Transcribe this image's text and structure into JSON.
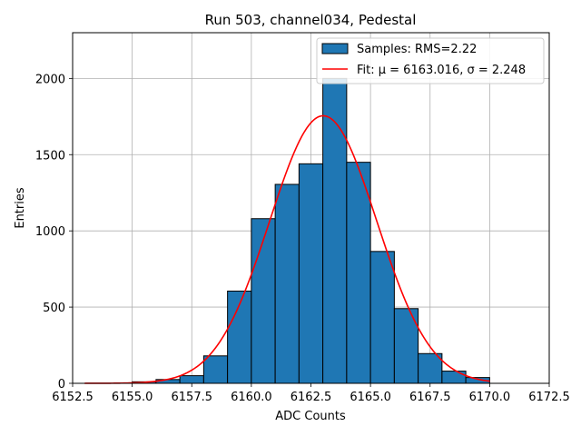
{
  "chart_data": {
    "type": "bar",
    "title": "Run 503, channel034, Pedestal",
    "xlabel": "ADC Counts",
    "ylabel": "Entries",
    "xlim": [
      6152.5,
      6172.5
    ],
    "ylim": [
      0,
      2300
    ],
    "xticks": [
      6152.5,
      6155.0,
      6157.5,
      6160.0,
      6162.5,
      6165.0,
      6167.5,
      6170.0,
      6172.5
    ],
    "xtick_labels": [
      "6152.5",
      "6155.0",
      "6157.5",
      "6160.0",
      "6162.5",
      "6165.0",
      "6167.5",
      "6170.0",
      "6172.5"
    ],
    "yticks": [
      0,
      500,
      1000,
      1500,
      2000
    ],
    "ytick_labels": [
      "0",
      "500",
      "1000",
      "1500",
      "2000"
    ],
    "grid": true,
    "legend_position": "top-right",
    "histogram": {
      "name": "Samples: RMS=2.22",
      "color": "#1f77b4",
      "edge_color": "#000000",
      "bins": [
        {
          "x0": 6155.0,
          "x1": 6156.0,
          "count": 10
        },
        {
          "x0": 6156.0,
          "x1": 6157.0,
          "count": 25
        },
        {
          "x0": 6157.0,
          "x1": 6158.0,
          "count": 50
        },
        {
          "x0": 6158.0,
          "x1": 6159.0,
          "count": 180
        },
        {
          "x0": 6159.0,
          "x1": 6160.0,
          "count": 605
        },
        {
          "x0": 6160.0,
          "x1": 6161.0,
          "count": 1080
        },
        {
          "x0": 6161.0,
          "x1": 6162.0,
          "count": 1305
        },
        {
          "x0": 6162.0,
          "x1": 6163.0,
          "count": 1440
        },
        {
          "x0": 6163.0,
          "x1": 6164.0,
          "count": 2000
        },
        {
          "x0": 6164.0,
          "x1": 6165.0,
          "count": 1450
        },
        {
          "x0": 6165.0,
          "x1": 6166.0,
          "count": 865
        },
        {
          "x0": 6166.0,
          "x1": 6167.0,
          "count": 490
        },
        {
          "x0": 6167.0,
          "x1": 6168.0,
          "count": 195
        },
        {
          "x0": 6168.0,
          "x1": 6169.0,
          "count": 80
        },
        {
          "x0": 6169.0,
          "x1": 6170.0,
          "count": 38
        }
      ]
    },
    "fit": {
      "name": "Fit: μ = 6163.016, σ = 2.248",
      "color": "#ff0000",
      "mu": 6163.016,
      "sigma": 2.248,
      "amplitude": 1755,
      "x_range": [
        6153.0,
        6170.0
      ]
    }
  }
}
